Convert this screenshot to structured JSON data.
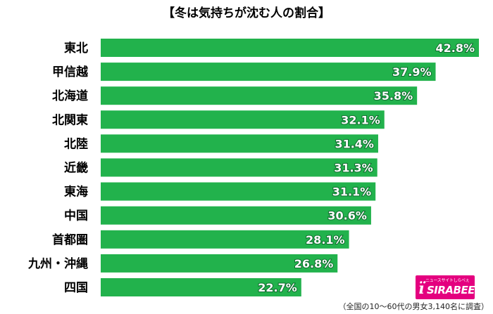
{
  "chart_data": {
    "type": "bar",
    "orientation": "horizontal",
    "title": "【冬は気持ちが沈む人の割合】",
    "categories": [
      "東北",
      "甲信越",
      "北海道",
      "北関東",
      "北陸",
      "近畿",
      "東海",
      "中国",
      "首都圏",
      "九州・沖縄",
      "四国"
    ],
    "values": [
      42.8,
      37.9,
      35.8,
      32.1,
      31.4,
      31.3,
      31.1,
      30.6,
      28.1,
      26.8,
      22.7
    ],
    "value_labels": [
      "42.8%",
      "37.9%",
      "35.8%",
      "32.1%",
      "31.4%",
      "31.3%",
      "31.1%",
      "30.6%",
      "28.1%",
      "26.8%",
      "22.7%"
    ],
    "unit": "%",
    "xlim": [
      0,
      42.8
    ],
    "grid": false,
    "bar_color": "#22b24c"
  },
  "footnote": "（全国の10～60代の男女3,140名に調査）",
  "logo": {
    "text": "SIRABEE",
    "subtext": "ニュースサイトしらべぇ",
    "color": "#e4007f"
  }
}
